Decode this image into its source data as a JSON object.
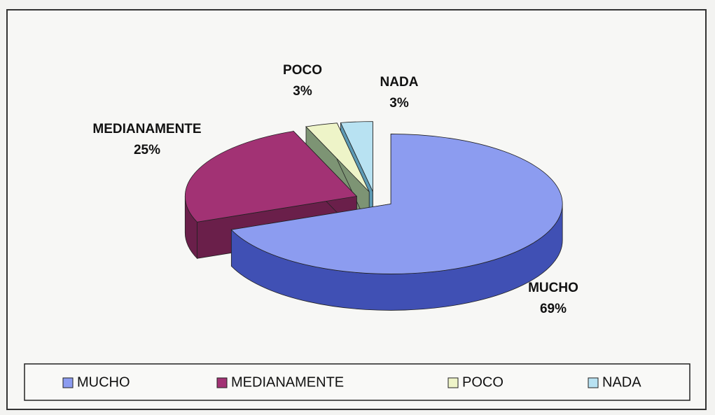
{
  "chart_data": {
    "type": "pie3d",
    "categories": [
      "MUCHO",
      "MEDIANAMENTE",
      "POCO",
      "NADA"
    ],
    "values": [
      69,
      25,
      3,
      3
    ],
    "value_labels": [
      "69%",
      "25%",
      "3%",
      "3%"
    ],
    "colors": [
      "#8c9cf0",
      "#a23274",
      "#eef4c8",
      "#b8e2f2"
    ],
    "side_colors": [
      "#4050b4",
      "#6a1f4a",
      "#7d9474",
      "#5d9ab4"
    ],
    "legend": "bottom"
  }
}
